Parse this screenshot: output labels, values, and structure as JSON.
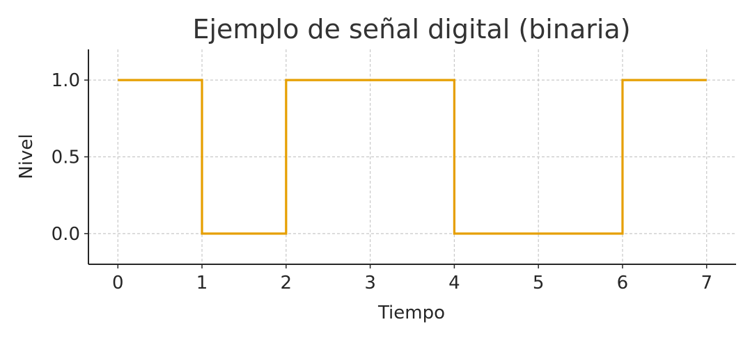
{
  "chart_data": {
    "type": "line",
    "step": "post",
    "title": "Ejemplo de señal digital (binaria)",
    "xlabel": "Tiempo",
    "ylabel": "Nivel",
    "x": [
      0,
      1,
      2,
      3,
      4,
      5,
      6,
      7
    ],
    "series": [
      {
        "values": [
          1,
          0,
          1,
          1,
          0,
          0,
          1,
          1
        ],
        "color": "#E69F00"
      }
    ],
    "xticks": [
      "0",
      "1",
      "2",
      "3",
      "4",
      "5",
      "6",
      "7"
    ],
    "yticks": [
      "0.0",
      "0.5",
      "1.0"
    ],
    "xlim": [
      -0.35,
      7.35
    ],
    "ylim": [
      -0.2,
      1.2
    ],
    "grid": true
  }
}
